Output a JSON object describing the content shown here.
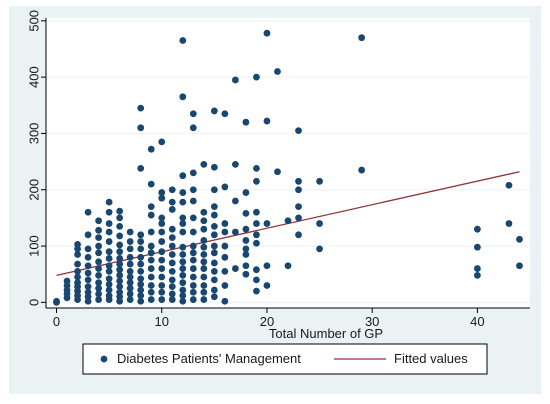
{
  "chart_data": {
    "type": "scatter",
    "title": "",
    "xlabel": "Total Number of GP",
    "ylabel": "",
    "xlim": [
      -1,
      45
    ],
    "ylim": [
      -10,
      505
    ],
    "xticks": [
      0,
      10,
      20,
      30,
      40
    ],
    "yticks": [
      0,
      100,
      200,
      300,
      400,
      500
    ],
    "grid": "y-major",
    "legend": {
      "placement": "bottom",
      "boxed": true
    },
    "colors": {
      "points": "#1a476f",
      "fit_line": "#90353b",
      "plot_bg": "#ffffff",
      "outer_bg": "#eaf2f3",
      "grid": "#eaf2f3"
    },
    "series": [
      {
        "name": "Diabetes Patients' Management",
        "kind": "scatter",
        "points": [
          [
            0,
            0
          ],
          [
            0,
            2
          ],
          [
            1,
            8
          ],
          [
            1,
            15
          ],
          [
            1,
            22
          ],
          [
            1,
            30
          ],
          [
            1,
            38
          ],
          [
            2,
            5
          ],
          [
            2,
            12
          ],
          [
            2,
            20
          ],
          [
            2,
            28
          ],
          [
            2,
            35
          ],
          [
            2,
            45
          ],
          [
            2,
            55
          ],
          [
            2,
            68
          ],
          [
            2,
            85
          ],
          [
            2,
            95
          ],
          [
            2,
            103
          ],
          [
            3,
            2
          ],
          [
            3,
            10
          ],
          [
            3,
            18
          ],
          [
            3,
            28
          ],
          [
            3,
            40
          ],
          [
            3,
            52
          ],
          [
            3,
            65
          ],
          [
            3,
            80
          ],
          [
            3,
            95
          ],
          [
            3,
            120
          ],
          [
            3,
            160
          ],
          [
            4,
            5
          ],
          [
            4,
            15
          ],
          [
            4,
            25
          ],
          [
            4,
            35
          ],
          [
            4,
            48
          ],
          [
            4,
            60
          ],
          [
            4,
            72
          ],
          [
            4,
            88
          ],
          [
            4,
            100
          ],
          [
            4,
            115
          ],
          [
            4,
            128
          ],
          [
            4,
            145
          ],
          [
            5,
            5
          ],
          [
            5,
            12
          ],
          [
            5,
            22
          ],
          [
            5,
            32
          ],
          [
            5,
            42
          ],
          [
            5,
            55
          ],
          [
            5,
            65
          ],
          [
            5,
            78
          ],
          [
            5,
            90
          ],
          [
            5,
            108
          ],
          [
            5,
            125
          ],
          [
            5,
            140
          ],
          [
            5,
            160
          ],
          [
            5,
            178
          ],
          [
            6,
            2
          ],
          [
            6,
            10
          ],
          [
            6,
            18
          ],
          [
            6,
            28
          ],
          [
            6,
            38
          ],
          [
            6,
            48
          ],
          [
            6,
            58
          ],
          [
            6,
            68
          ],
          [
            6,
            78
          ],
          [
            6,
            90
          ],
          [
            6,
            102
          ],
          [
            6,
            118
          ],
          [
            6,
            135
          ],
          [
            6,
            150
          ],
          [
            6,
            162
          ],
          [
            7,
            5
          ],
          [
            7,
            15
          ],
          [
            7,
            25
          ],
          [
            7,
            35
          ],
          [
            7,
            45
          ],
          [
            7,
            55
          ],
          [
            7,
            68
          ],
          [
            7,
            80
          ],
          [
            7,
            95
          ],
          [
            7,
            108
          ],
          [
            7,
            125
          ],
          [
            8,
            2
          ],
          [
            8,
            12
          ],
          [
            8,
            22
          ],
          [
            8,
            32
          ],
          [
            8,
            42
          ],
          [
            8,
            55
          ],
          [
            8,
            68
          ],
          [
            8,
            80
          ],
          [
            8,
            95
          ],
          [
            8,
            108
          ],
          [
            8,
            120
          ],
          [
            8,
            238
          ],
          [
            8,
            310
          ],
          [
            8,
            345
          ],
          [
            9,
            5
          ],
          [
            9,
            18
          ],
          [
            9,
            30
          ],
          [
            9,
            45
          ],
          [
            9,
            60
          ],
          [
            9,
            75
          ],
          [
            9,
            88
          ],
          [
            9,
            100
          ],
          [
            9,
            125
          ],
          [
            9,
            155
          ],
          [
            9,
            170
          ],
          [
            9,
            210
          ],
          [
            9,
            272
          ],
          [
            10,
            5
          ],
          [
            10,
            18
          ],
          [
            10,
            30
          ],
          [
            10,
            45
          ],
          [
            10,
            60
          ],
          [
            10,
            75
          ],
          [
            10,
            90
          ],
          [
            10,
            108
          ],
          [
            10,
            125
          ],
          [
            10,
            140
          ],
          [
            10,
            150
          ],
          [
            10,
            185
          ],
          [
            10,
            195
          ],
          [
            10,
            285
          ],
          [
            11,
            5
          ],
          [
            11,
            15
          ],
          [
            11,
            28
          ],
          [
            11,
            40
          ],
          [
            11,
            55
          ],
          [
            11,
            70
          ],
          [
            11,
            85
          ],
          [
            11,
            100
          ],
          [
            11,
            115
          ],
          [
            11,
            130
          ],
          [
            11,
            165
          ],
          [
            11,
            178
          ],
          [
            11,
            200
          ],
          [
            12,
            2
          ],
          [
            12,
            12
          ],
          [
            12,
            22
          ],
          [
            12,
            35
          ],
          [
            12,
            48
          ],
          [
            12,
            60
          ],
          [
            12,
            72
          ],
          [
            12,
            85
          ],
          [
            12,
            98
          ],
          [
            12,
            125
          ],
          [
            12,
            140
          ],
          [
            12,
            150
          ],
          [
            12,
            178
          ],
          [
            12,
            195
          ],
          [
            12,
            225
          ],
          [
            12,
            365
          ],
          [
            12,
            465
          ],
          [
            13,
            5
          ],
          [
            13,
            18
          ],
          [
            13,
            30
          ],
          [
            13,
            45
          ],
          [
            13,
            60
          ],
          [
            13,
            75
          ],
          [
            13,
            88
          ],
          [
            13,
            100
          ],
          [
            13,
            125
          ],
          [
            13,
            150
          ],
          [
            13,
            180
          ],
          [
            13,
            200
          ],
          [
            13,
            230
          ],
          [
            13,
            310
          ],
          [
            13,
            335
          ],
          [
            14,
            5
          ],
          [
            14,
            18
          ],
          [
            14,
            30
          ],
          [
            14,
            45
          ],
          [
            14,
            60
          ],
          [
            14,
            72
          ],
          [
            14,
            85
          ],
          [
            14,
            98
          ],
          [
            14,
            110
          ],
          [
            14,
            130
          ],
          [
            14,
            145
          ],
          [
            14,
            160
          ],
          [
            14,
            245
          ],
          [
            15,
            10
          ],
          [
            15,
            22
          ],
          [
            15,
            40
          ],
          [
            15,
            55
          ],
          [
            15,
            70
          ],
          [
            15,
            88
          ],
          [
            15,
            100
          ],
          [
            15,
            120
          ],
          [
            15,
            135
          ],
          [
            15,
            155
          ],
          [
            15,
            170
          ],
          [
            15,
            200
          ],
          [
            15,
            240
          ],
          [
            15,
            340
          ],
          [
            16,
            2
          ],
          [
            16,
            30
          ],
          [
            16,
            55
          ],
          [
            16,
            80
          ],
          [
            16,
            100
          ],
          [
            16,
            125
          ],
          [
            16,
            140
          ],
          [
            16,
            205
          ],
          [
            16,
            335
          ],
          [
            17,
            60
          ],
          [
            17,
            125
          ],
          [
            17,
            180
          ],
          [
            17,
            245
          ],
          [
            17,
            395
          ],
          [
            18,
            50
          ],
          [
            18,
            65
          ],
          [
            18,
            85
          ],
          [
            18,
            95
          ],
          [
            18,
            110
          ],
          [
            18,
            130
          ],
          [
            18,
            158
          ],
          [
            18,
            195
          ],
          [
            18,
            320
          ],
          [
            19,
            20
          ],
          [
            19,
            40
          ],
          [
            19,
            58
          ],
          [
            19,
            105
          ],
          [
            19,
            120
          ],
          [
            19,
            140
          ],
          [
            19,
            160
          ],
          [
            19,
            215
          ],
          [
            19,
            238
          ],
          [
            19,
            400
          ],
          [
            20,
            30
          ],
          [
            20,
            65
          ],
          [
            20,
            140
          ],
          [
            20,
            322
          ],
          [
            20,
            478
          ],
          [
            21,
            232
          ],
          [
            21,
            410
          ],
          [
            22,
            65
          ],
          [
            22,
            145
          ],
          [
            23,
            120
          ],
          [
            23,
            150
          ],
          [
            23,
            170
          ],
          [
            23,
            200
          ],
          [
            23,
            215
          ],
          [
            23,
            305
          ],
          [
            25,
            95
          ],
          [
            25,
            140
          ],
          [
            25,
            215
          ],
          [
            29,
            235
          ],
          [
            29,
            470
          ],
          [
            40,
            48
          ],
          [
            40,
            60
          ],
          [
            40,
            98
          ],
          [
            40,
            130
          ],
          [
            43,
            140
          ],
          [
            43,
            208
          ],
          [
            44,
            65
          ],
          [
            44,
            112
          ]
        ]
      },
      {
        "name": "Fitted values",
        "kind": "line",
        "points": [
          [
            0,
            48
          ],
          [
            44,
            232
          ]
        ]
      }
    ]
  }
}
